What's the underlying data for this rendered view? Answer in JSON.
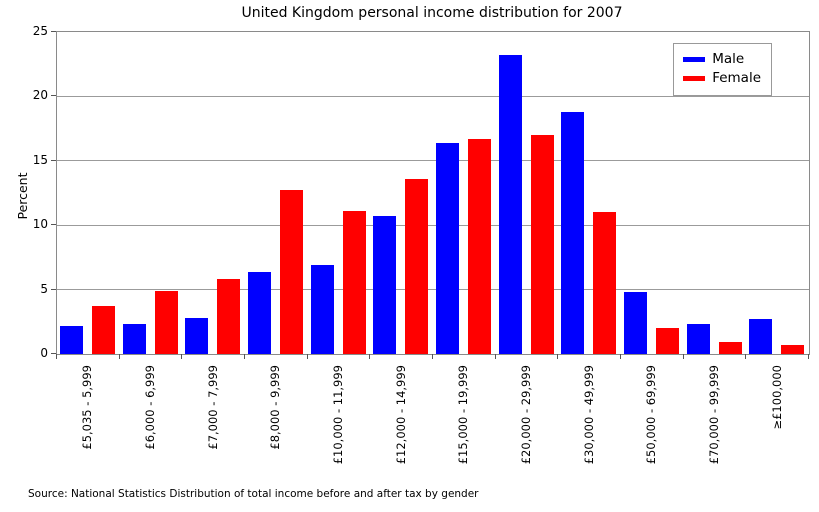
{
  "chart_data": {
    "type": "bar",
    "title": "United Kingdom personal income distribution for 2007",
    "categories": [
      "£5,035 - 5,999",
      "£6,000 - 6,999",
      "£7,000 - 7,999",
      "£8,000 - 9,999",
      "£10,000 - 11,999",
      "£12,000 - 14,999",
      "£15,000 - 19,999",
      "£20,000 - 29,999",
      "£30,000 - 49,999",
      "£50,000 - 69,999",
      "£70,000 - 99,999",
      "≥£100,000"
    ],
    "series": [
      {
        "name": "Male",
        "color": "#0000ff",
        "values": [
          2.2,
          2.3,
          2.8,
          6.4,
          6.9,
          10.7,
          16.4,
          23.2,
          18.8,
          4.8,
          2.3,
          2.7
        ]
      },
      {
        "name": "Female",
        "color": "#ff0000",
        "values": [
          3.7,
          4.9,
          5.8,
          12.7,
          11.1,
          13.6,
          16.7,
          17.0,
          11.0,
          2.0,
          0.9,
          0.7
        ]
      }
    ],
    "xlabel": "",
    "ylabel": "Percent",
    "ylim": [
      0,
      25
    ],
    "yticks": [
      0,
      5,
      10,
      15,
      20,
      25
    ],
    "grid": true,
    "legend_position": "upper right",
    "source": "Source: National Statistics Distribution of total income before and after tax by gender"
  }
}
